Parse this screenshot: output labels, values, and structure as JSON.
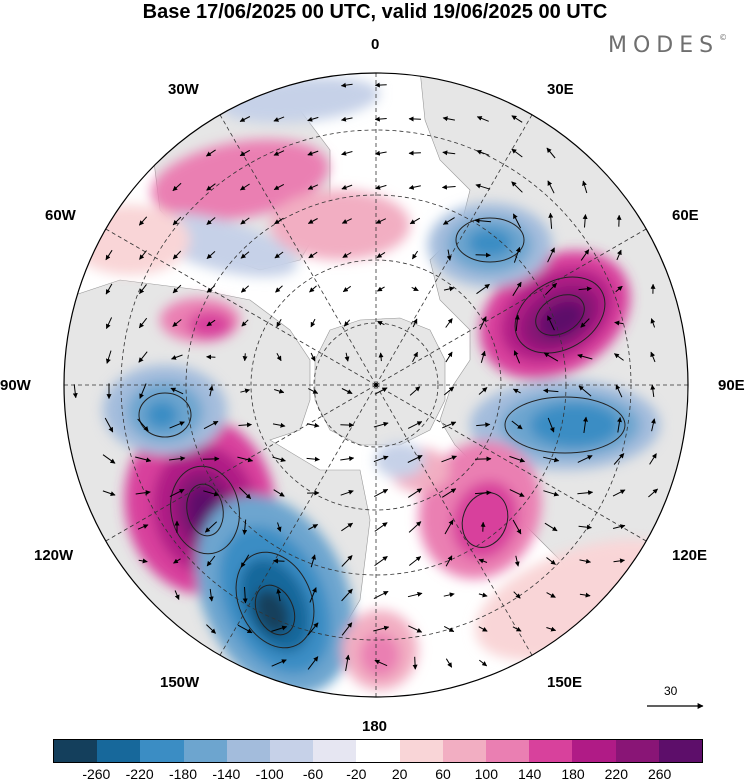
{
  "title": "Base 17/06/2025 00 UTC, valid 19/06/2025 00 UTC",
  "brand": "MODES",
  "brand_mark": "©",
  "longitude_labels": {
    "lon_0": "0",
    "lon_30E": "30E",
    "lon_60E": "60E",
    "lon_90E": "90E",
    "lon_120E": "120E",
    "lon_150E": "150E",
    "lon_180": "180",
    "lon_150W": "150W",
    "lon_120W": "120W",
    "lon_90W": "90W",
    "lon_60W": "60W",
    "lon_30W": "30W"
  },
  "wind_reference": {
    "label": "30",
    "icon": "arrow-right-icon"
  },
  "map": {
    "projection": "north-polar-stereographic",
    "land_color": "#e6e6e6",
    "graticule_meridians_deg": [
      0,
      30,
      60,
      90,
      120,
      150,
      180,
      210,
      240,
      270,
      300,
      330
    ],
    "anomaly_centers": [
      {
        "sign": "negative",
        "value": -260,
        "region": "northeast Pacific / Gulf of Alaska"
      },
      {
        "sign": "positive",
        "value": 260,
        "region": "western Canada"
      },
      {
        "sign": "negative",
        "value": -180,
        "region": "Hudson Bay"
      },
      {
        "sign": "positive",
        "value": 260,
        "region": "western Siberia"
      },
      {
        "sign": "negative",
        "value": -220,
        "region": "central Siberia"
      },
      {
        "sign": "negative",
        "value": -180,
        "region": "Scandinavia"
      },
      {
        "sign": "positive",
        "value": 180,
        "region": "East Siberian Sea"
      },
      {
        "sign": "positive",
        "value": 100,
        "region": "Bering Strait"
      }
    ]
  },
  "colorbar": {
    "colors": [
      "#143f5c",
      "#17689b",
      "#3b8dc4",
      "#6da5cf",
      "#a3bcdc",
      "#c6d1e8",
      "#e6e6f2",
      "#ffffff",
      "#f9d5d7",
      "#f2aec2",
      "#ea7fb2",
      "#d8419c",
      "#b01b86",
      "#891576",
      "#5d0e6a"
    ],
    "tick_labels": [
      "-260",
      "-220",
      "-180",
      "-140",
      "-100",
      "-60",
      "-20",
      "20",
      "60",
      "100",
      "140",
      "180",
      "220",
      "260"
    ]
  }
}
